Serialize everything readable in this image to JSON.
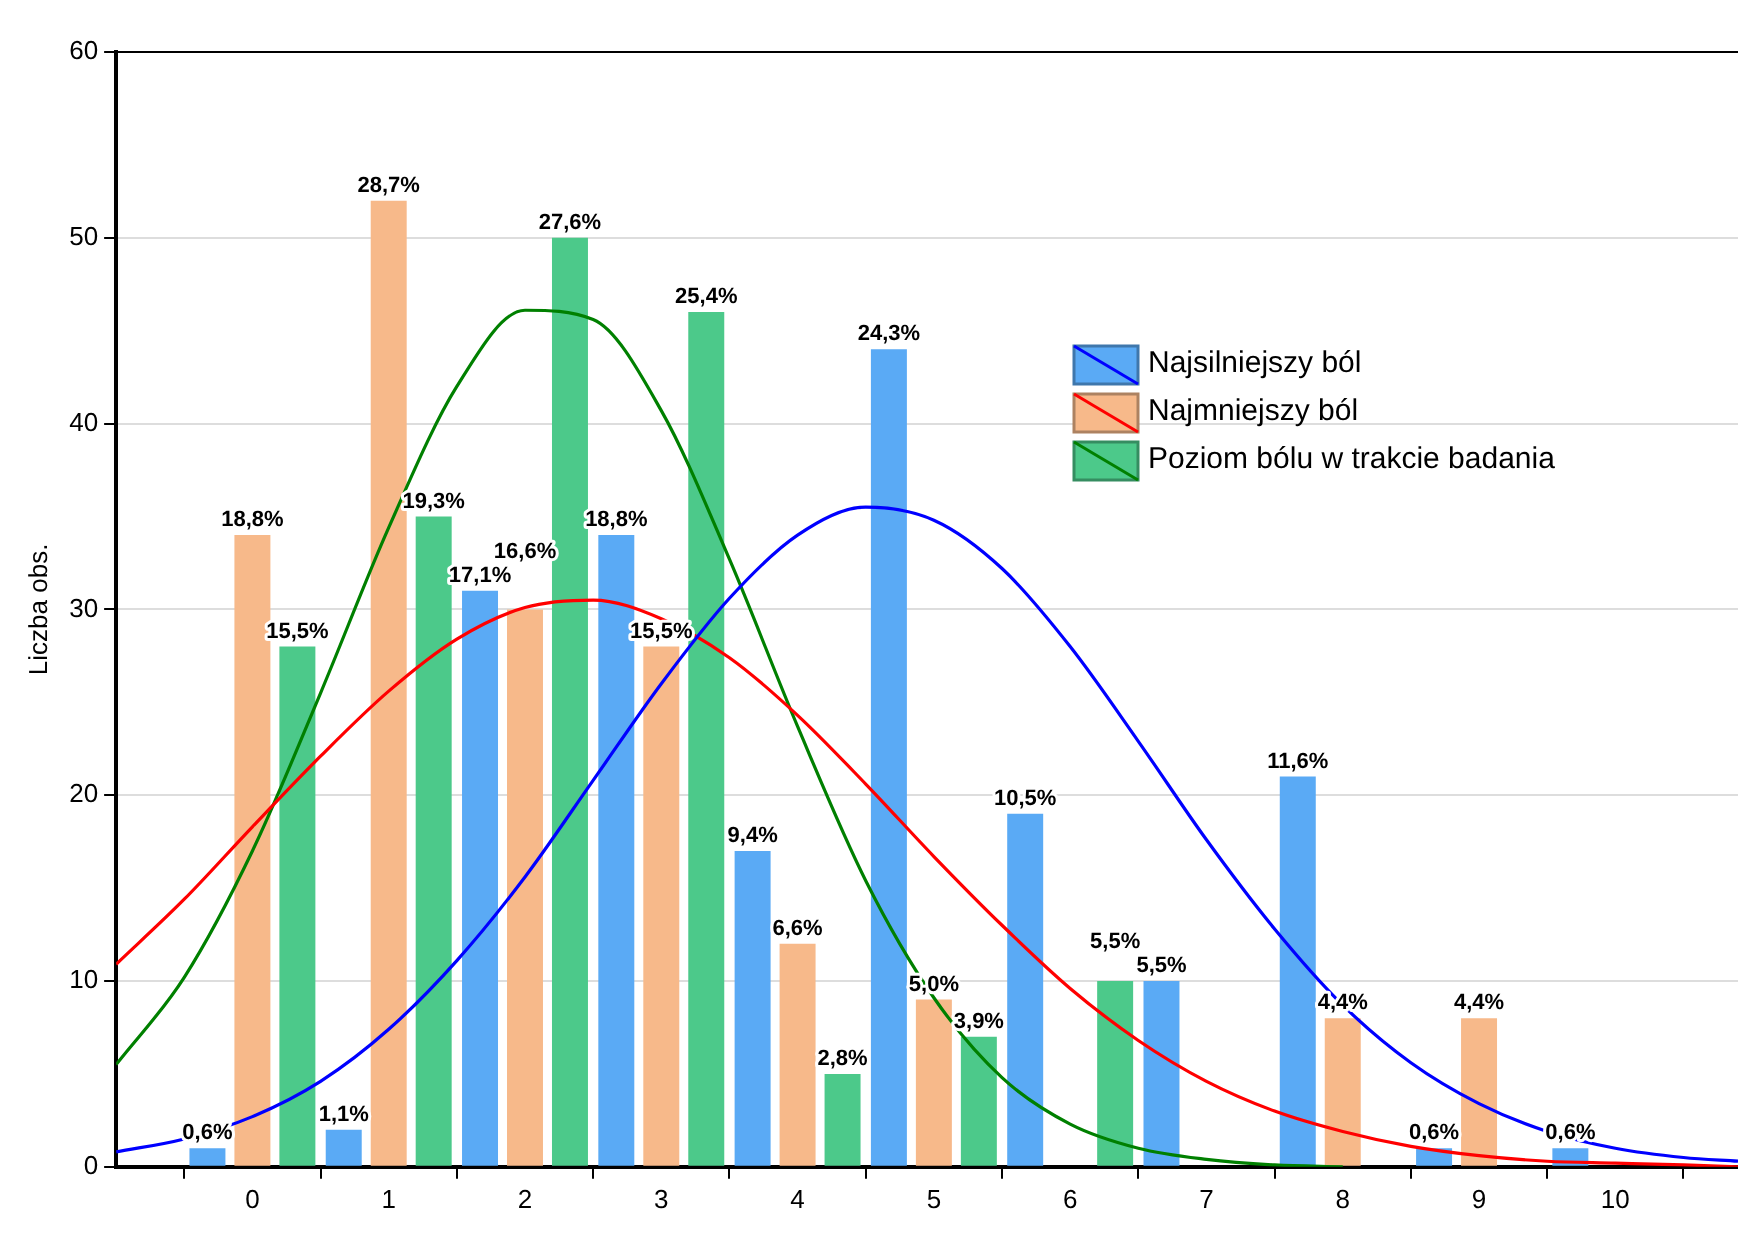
{
  "chart_data": {
    "type": "bar",
    "ylabel": "Liczba obs.",
    "x": [
      0,
      1,
      2,
      3,
      4,
      5,
      6,
      7,
      8,
      9
    ],
    "xlim": [
      -1,
      10.9
    ],
    "xticks": [
      0,
      1,
      2,
      3,
      4,
      5,
      6,
      7,
      8,
      9,
      10
    ],
    "ylim": [
      0,
      60
    ],
    "yticks": [
      0,
      10,
      20,
      30,
      40,
      50,
      60
    ],
    "grid": "y",
    "legend": "top right",
    "series": [
      {
        "name": "Najsilniejszy ból",
        "color": "#5aaaf5",
        "x": [
          -0.33,
          0.67,
          1.67,
          2.67,
          3.67,
          4.67,
          5.67,
          6.67,
          7.67,
          8.67,
          9.67
        ],
        "values": [
          1,
          2,
          31,
          34,
          17,
          44,
          19,
          10,
          21,
          1,
          1
        ]
      },
      {
        "name": "Najmniejszy ból",
        "color": "#f7b98a",
        "values": [
          34,
          52,
          30,
          28,
          12,
          9,
          null,
          null,
          8,
          8
        ]
      },
      {
        "name": "Poziom bólu w trakcie badania",
        "color": "#4cc98a",
        "x": [
          0.33,
          1.33,
          2.33,
          3.33,
          4.33,
          5.33,
          6.33
        ],
        "values": [
          28,
          35,
          50,
          46,
          5,
          7,
          10
        ]
      },
      {
        "type": "line",
        "color": "#0000ff",
        "marker": "none",
        "x": [
          -1,
          -0.5,
          0,
          0.5,
          1,
          1.5,
          2,
          2.5,
          3,
          3.5,
          4,
          4.5,
          5,
          5.5,
          6,
          6.5,
          7,
          7.5,
          8,
          8.5,
          9,
          9.5,
          10,
          10.5,
          10.9
        ],
        "values": [
          0.8,
          1.5,
          2.7,
          4.6,
          7.4,
          11.1,
          15.6,
          20.8,
          26.0,
          30.6,
          34.0,
          35.5,
          34.8,
          32.2,
          28.0,
          22.9,
          17.6,
          12.8,
          8.7,
          5.6,
          3.4,
          1.9,
          1.0,
          0.5,
          0.3
        ]
      },
      {
        "type": "line",
        "color": "#ff0000",
        "marker": "none",
        "x": [
          -1,
          -0.5,
          0,
          0.5,
          1,
          1.5,
          2,
          2.5,
          3,
          3.5,
          4,
          4.5,
          5,
          5.5,
          6,
          6.5,
          7,
          7.5,
          8,
          8.5,
          9,
          9.5,
          10,
          10.5,
          10.9
        ],
        "values": [
          10.9,
          14.4,
          18.3,
          22.1,
          25.6,
          28.4,
          30.1,
          30.5,
          29.5,
          27.4,
          24.3,
          20.6,
          16.7,
          13.0,
          9.6,
          6.8,
          4.6,
          3.0,
          1.9,
          1.1,
          0.6,
          0.3,
          0.2,
          0.1,
          0.0
        ]
      },
      {
        "type": "line",
        "color": "#008000",
        "marker": "none",
        "x": [
          -1,
          -0.5,
          0,
          0.5,
          1,
          1.5,
          2,
          2.5,
          3,
          3.5,
          4,
          4.5,
          5,
          5.5,
          6,
          6.5,
          7,
          7.5,
          8
        ],
        "values": [
          5.5,
          10.2,
          17.0,
          25.5,
          34.4,
          42.0,
          46.1,
          45.6,
          40.7,
          32.7,
          23.7,
          15.4,
          9.1,
          4.8,
          2.3,
          1.0,
          0.4,
          0.1,
          0.0
        ]
      }
    ],
    "annotations": [
      {
        "text": "0,6%",
        "x": -0.33,
        "y": 1
      },
      {
        "text": "1,1%",
        "x": 0.67,
        "y": 2
      },
      {
        "text": "17,1%",
        "x": 1.67,
        "y": 31
      },
      {
        "text": "18,8%",
        "x": 2.67,
        "y": 34
      },
      {
        "text": "9,4%",
        "x": 3.67,
        "y": 17
      },
      {
        "text": "24,3%",
        "x": 4.67,
        "y": 44
      },
      {
        "text": "10,5%",
        "x": 5.67,
        "y": 19
      },
      {
        "text": "5,5%",
        "x": 6.67,
        "y": 10
      },
      {
        "text": "11,6%",
        "x": 7.67,
        "y": 21
      },
      {
        "text": "0,6%",
        "x": 8.67,
        "y": 1
      },
      {
        "text": "0,6%",
        "x": 9.67,
        "y": 1
      },
      {
        "text": "18,8%",
        "x": 0,
        "y": 34
      },
      {
        "text": "28,7%",
        "x": 1,
        "y": 52
      },
      {
        "text": "16,6%",
        "x": 2,
        "y": 30
      },
      {
        "text": "15,5%",
        "x": 3,
        "y": 28
      },
      {
        "text": "6,6%",
        "x": 4,
        "y": 12
      },
      {
        "text": "5,0%",
        "x": 5,
        "y": 9
      },
      {
        "text": "4,4%",
        "x": 8,
        "y": 8
      },
      {
        "text": "4,4%",
        "x": 9,
        "y": 8
      },
      {
        "text": "15,5%",
        "x": 0.33,
        "y": 28
      },
      {
        "text": "19,3%",
        "x": 1.33,
        "y": 35
      },
      {
        "text": "27,6%",
        "x": 2.33,
        "y": 50
      },
      {
        "text": "25,4%",
        "x": 3.33,
        "y": 46
      },
      {
        "text": "2,8%",
        "x": 4.33,
        "y": 5
      },
      {
        "text": "3,9%",
        "x": 5.33,
        "y": 7
      },
      {
        "text": "5,5%",
        "x": 6.33,
        "y": 10
      }
    ]
  }
}
